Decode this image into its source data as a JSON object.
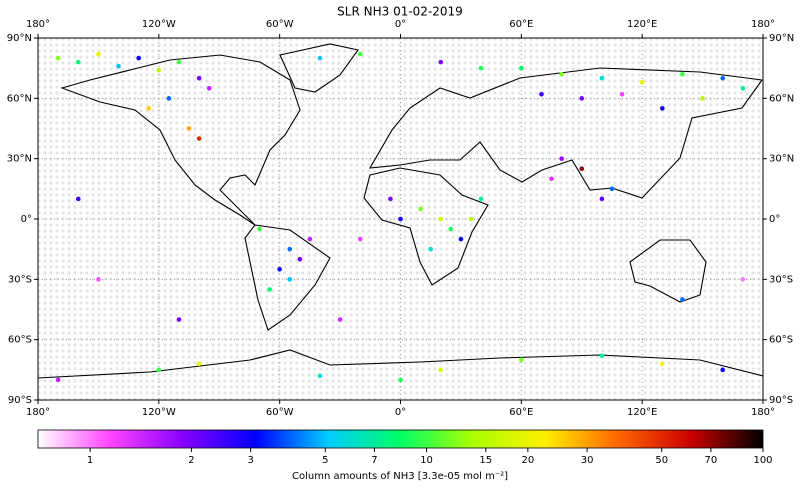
{
  "chart_data": {
    "type": "map-scatter",
    "title": "SLR NH3 01-02-2019",
    "xlim": [
      -180,
      180
    ],
    "ylim": [
      -90,
      90
    ],
    "xticks": [
      {
        "value": -180,
        "label": "180°"
      },
      {
        "value": -120,
        "label": "120°W"
      },
      {
        "value": -60,
        "label": "60°W"
      },
      {
        "value": 0,
        "label": "0°"
      },
      {
        "value": 60,
        "label": "60°E"
      },
      {
        "value": 120,
        "label": "120°E"
      },
      {
        "value": 180,
        "label": "180°"
      }
    ],
    "yticks": [
      {
        "value": 90,
        "label": "90°N"
      },
      {
        "value": 60,
        "label": "60°N"
      },
      {
        "value": 30,
        "label": "30°N"
      },
      {
        "value": 0,
        "label": "0°"
      },
      {
        "value": -30,
        "label": "30°S"
      },
      {
        "value": -60,
        "label": "60°S"
      },
      {
        "value": -90,
        "label": "90°S"
      }
    ],
    "grid": true,
    "colorbar": {
      "label": "Column amounts of NH3 [3.3e-05 mol m⁻²]",
      "log": true,
      "clim": [
        0.7,
        100
      ],
      "ticks": [
        1,
        2,
        3,
        5,
        7,
        10,
        15,
        20,
        30,
        50,
        70,
        100
      ],
      "colormap": [
        "#ffffff",
        "#ff44ff",
        "#8800ff",
        "#0000ff",
        "#00ccff",
        "#00ff66",
        "#aaff00",
        "#ffee00",
        "#ff6600",
        "#cc0000",
        "#000000"
      ]
    },
    "points": {
      "lon": [
        -170,
        -160,
        -150,
        -140,
        -130,
        -120,
        -110,
        -100,
        -95,
        -115,
        -125,
        -105,
        -100,
        60,
        80,
        100,
        120,
        140,
        160,
        170,
        90,
        110,
        130,
        150,
        70,
        -40,
        -20,
        20,
        40,
        10,
        20,
        25,
        30,
        35,
        -5,
        15,
        40,
        -55,
        -50,
        -60,
        -45,
        -65,
        -55,
        -70,
        75,
        100,
        105,
        90,
        80,
        -120,
        -100,
        -40,
        0,
        20,
        60,
        100,
        130,
        160,
        -170,
        -150,
        -160,
        170,
        -30,
        0,
        -20,
        140,
        -110
      ],
      "lat": [
        80,
        78,
        82,
        76,
        80,
        74,
        78,
        70,
        65,
        60,
        55,
        45,
        40,
        75,
        72,
        70,
        68,
        72,
        70,
        65,
        60,
        62,
        55,
        60,
        62,
        80,
        82,
        78,
        75,
        5,
        0,
        -5,
        -10,
        0,
        10,
        -15,
        10,
        -15,
        -20,
        -25,
        -10,
        -35,
        -30,
        -5,
        20,
        10,
        15,
        25,
        30,
        -75,
        -72,
        -78,
        -80,
        -75,
        -70,
        -68,
        -72,
        -75,
        -80,
        -30,
        10,
        -30,
        -50,
        0,
        -10,
        -40,
        -50
      ],
      "values": [
        12,
        8,
        20,
        5,
        3,
        15,
        10,
        2,
        1.5,
        4,
        25,
        30,
        50,
        8,
        12,
        6,
        20,
        10,
        4,
        7,
        2,
        1.2,
        3,
        15,
        2.5,
        5,
        10,
        2,
        9,
        12,
        18,
        9,
        3,
        14,
        2,
        6,
        7,
        4,
        2,
        3,
        1.5,
        8,
        5,
        10,
        1.3,
        2.2,
        4,
        70,
        1.8,
        10,
        20,
        6,
        9,
        18,
        12,
        7,
        22,
        3,
        1.5,
        1.1,
        2.5,
        1,
        1.4,
        2.8,
        1.2,
        4,
        2
      ]
    }
  }
}
